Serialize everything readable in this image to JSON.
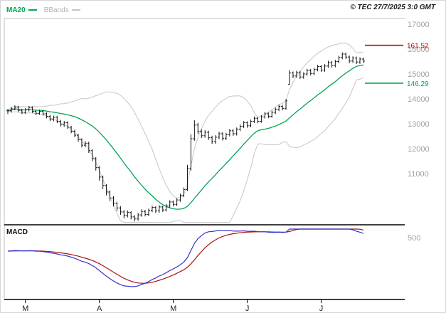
{
  "header": {
    "legend_ma20": {
      "label": "MA20"
    },
    "legend_bbands": {
      "label": "BBands"
    },
    "copyright": "© TEC 27/7/2025 3:0 GMT"
  },
  "chart_data": {
    "type": "candlestick",
    "title": "",
    "period": "daily",
    "x_axis": {
      "labels": [
        "M",
        "A",
        "M",
        "J",
        "J"
      ],
      "label_indices": [
        5,
        26,
        47,
        68,
        89
      ]
    },
    "y_axis": {
      "ticks": [
        {
          "label": "17000",
          "value": 170
        },
        {
          "label": "16000",
          "value": 160
        },
        {
          "label": "15000",
          "value": 150
        },
        {
          "label": "14000",
          "value": 140
        },
        {
          "label": "13000",
          "value": 130
        },
        {
          "label": "12000",
          "value": 120
        },
        {
          "label": "11000",
          "value": 110
        }
      ],
      "range": [
        89,
        171
      ],
      "grid": false
    },
    "levels": [
      {
        "name": "resistance",
        "label": "161.52",
        "value": 161.52,
        "color": "#cc0000"
      },
      {
        "name": "support",
        "label": "146.29",
        "value": 146.29,
        "color": "#00a651"
      }
    ],
    "series": {
      "close": [
        135.2,
        136.0,
        136.6,
        135.4,
        134.6,
        135.6,
        136.4,
        135.0,
        134.2,
        135.0,
        134.0,
        133.0,
        131.8,
        132.6,
        131.0,
        129.6,
        130.4,
        128.6,
        127.0,
        125.4,
        123.6,
        121.4,
        122.2,
        119.2,
        116.0,
        112.4,
        108.6,
        105.2,
        102.6,
        100.2,
        98.0,
        96.2,
        94.6,
        93.2,
        94.4,
        92.6,
        91.8,
        93.4,
        94.8,
        93.6,
        95.2,
        96.4,
        95.0,
        96.6,
        95.4,
        97.0,
        98.6,
        97.6,
        99.4,
        101.2,
        103.6,
        112.0,
        124.0,
        129.5,
        127.0,
        125.2,
        126.6,
        124.4,
        122.8,
        124.6,
        126.0,
        124.2,
        125.6,
        127.2,
        126.0,
        127.8,
        129.0,
        130.4,
        129.2,
        131.0,
        132.2,
        131.0,
        132.8,
        134.0,
        133.0,
        134.6,
        135.8,
        137.0,
        136.2,
        139.2,
        150.4,
        149.2,
        150.6,
        148.8,
        150.0,
        151.4,
        150.2,
        151.8,
        153.0,
        151.6,
        153.2,
        154.6,
        153.4,
        155.0,
        156.6,
        158.0,
        156.8,
        155.2,
        156.4,
        154.8,
        156.0,
        155.2
      ],
      "high": [
        136.0,
        136.8,
        137.4,
        137.2,
        136.0,
        136.3,
        137.1,
        137.0,
        135.6,
        135.7,
        135.6,
        134.6,
        133.6,
        133.3,
        133.2,
        131.6,
        131.1,
        131.0,
        129.2,
        127.6,
        126.0,
        124.2,
        123.0,
        122.8,
        119.8,
        116.6,
        113.0,
        109.2,
        105.8,
        103.2,
        100.9,
        98.7,
        96.9,
        95.3,
        95.2,
        94.9,
        93.3,
        94.2,
        95.6,
        95.4,
        95.9,
        97.1,
        96.9,
        97.3,
        97.1,
        97.7,
        99.3,
        99.2,
        100.1,
        101.9,
        104.4,
        113.5,
        125.8,
        131.4,
        130.4,
        127.8,
        127.4,
        127.2,
        125.2,
        125.4,
        126.8,
        126.6,
        126.4,
        127.9,
        127.8,
        128.5,
        129.7,
        131.1,
        131.0,
        131.7,
        132.9,
        132.8,
        133.5,
        134.7,
        134.6,
        135.3,
        136.5,
        137.7,
        137.6,
        139.9,
        151.6,
        151.0,
        151.3,
        151.2,
        150.7,
        152.1,
        152.0,
        152.5,
        153.7,
        153.6,
        153.9,
        155.3,
        155.2,
        155.7,
        157.3,
        158.7,
        158.6,
        157.4,
        157.1,
        157.0,
        156.7,
        156.6
      ],
      "low": [
        133.9,
        134.5,
        135.4,
        134.7,
        133.9,
        134.0,
        135.0,
        134.3,
        133.5,
        133.6,
        133.3,
        132.2,
        131.1,
        131.0,
        130.3,
        128.9,
        128.8,
        127.9,
        126.2,
        124.6,
        122.8,
        120.5,
        120.6,
        118.3,
        115.0,
        111.2,
        107.2,
        103.8,
        101.2,
        99.0,
        96.8,
        95.0,
        93.4,
        92.0,
        92.4,
        91.6,
        90.8,
        91.1,
        92.7,
        92.8,
        92.9,
        94.5,
        94.2,
        94.3,
        94.6,
        94.8,
        96.3,
        96.8,
        97.0,
        98.7,
        100.5,
        103.0,
        111.2,
        123.2,
        126.0,
        124.3,
        124.4,
        123.5,
        121.9,
        122.0,
        123.8,
        123.3,
        123.5,
        124.9,
        125.2,
        125.3,
        127.1,
        128.3,
        128.4,
        128.6,
        130.3,
        130.2,
        130.4,
        132.1,
        132.2,
        132.4,
        133.9,
        135.1,
        135.4,
        135.6,
        145.8,
        148.3,
        148.5,
        148.0,
        148.1,
        149.3,
        149.4,
        149.5,
        151.1,
        150.8,
        150.9,
        152.5,
        152.6,
        152.7,
        154.3,
        155.9,
        156.0,
        154.4,
        154.5,
        154.0,
        154.1,
        154.3
      ]
    },
    "overlays": [
      {
        "name": "MA20",
        "type": "sma",
        "period": 20,
        "color": "#00a651"
      },
      {
        "name": "BBands",
        "type": "bollinger_bands",
        "period": 20,
        "stddev": 2,
        "color": "#c6c6c6"
      }
    ],
    "indicator": {
      "name": "MACD",
      "type": "macd",
      "fast": 12,
      "slow": 26,
      "signal_period": 9,
      "axis_label": "500"
    },
    "colors": {
      "candles": "#111111",
      "axis_label": "#a2a29a",
      "month_label": "#222222",
      "ma20": "#00a651",
      "bbands": "#c6c6c6",
      "resistance": "#cc0000",
      "support": "#00a651",
      "macd_line": "#3333cc",
      "macd_signal": "#aa1111",
      "border_gray": "#bcbcbc",
      "border_black": "#000000"
    }
  }
}
